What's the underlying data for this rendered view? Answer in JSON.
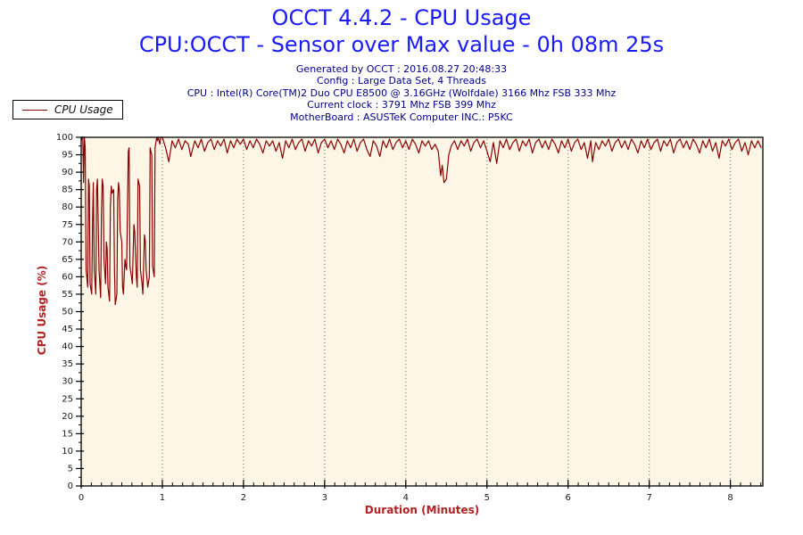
{
  "header": {
    "title": "OCCT 4.4.2 - CPU Usage",
    "subtitle": "CPU:OCCT - Sensor over Max value - 0h 08m 25s",
    "title_color": "#1a1aff",
    "info_color": "#00008B",
    "info_lines": [
      "Generated by OCCT : 2016.08.27 20:48:33",
      "Config : Large Data Set, 4 Threads",
      "CPU : Intel(R) Core(TM)2 Duo CPU E8500 @ 3.16GHz (Wolfdale) 3166 Mhz FSB 333 Mhz",
      "Current clock : 3791 Mhz FSB 399 Mhz",
      "MotherBoard : ASUSTeK Computer INC.: P5KC"
    ]
  },
  "legend": {
    "label": "CPU Usage",
    "line_color": "#8B0000",
    "position": "top-left"
  },
  "chart_data": {
    "type": "line",
    "title": "OCCT 4.4.2 - CPU Usage",
    "xlabel": "Duration (Minutes)",
    "ylabel": "CPU Usage (%)",
    "xlim": [
      0,
      8.4
    ],
    "ylim": [
      0,
      100
    ],
    "x_major_ticks": [
      0,
      1,
      2,
      3,
      4,
      5,
      6,
      7,
      8
    ],
    "x_minor_step": 0.125,
    "y_major_step": 5,
    "y_minor_step": 2.5,
    "grid": "vertical-dotted-at-each-minute",
    "legend_position": "top-left",
    "plot_bg": "#fdf6e6",
    "line_color": "#8b0000",
    "grid_color": "#666666",
    "spine_color": "#000000",
    "axis_label_color": "#b22222",
    "tick_label_color": "#1a1a1a",
    "series": [
      {
        "name": "CPU Usage",
        "points": [
          [
            0,
            99
          ],
          [
            0.01,
            100
          ],
          [
            0.02,
            100
          ],
          [
            0.03,
            87
          ],
          [
            0.04,
            100
          ],
          [
            0.05,
            97
          ],
          [
            0.06,
            62
          ],
          [
            0.08,
            57
          ],
          [
            0.09,
            88
          ],
          [
            0.1,
            86
          ],
          [
            0.11,
            58
          ],
          [
            0.13,
            55
          ],
          [
            0.14,
            75
          ],
          [
            0.15,
            87
          ],
          [
            0.16,
            62
          ],
          [
            0.18,
            55
          ],
          [
            0.19,
            85
          ],
          [
            0.2,
            88
          ],
          [
            0.21,
            75
          ],
          [
            0.22,
            62
          ],
          [
            0.24,
            54
          ],
          [
            0.25,
            78
          ],
          [
            0.26,
            88
          ],
          [
            0.27,
            86
          ],
          [
            0.28,
            65
          ],
          [
            0.3,
            58
          ],
          [
            0.31,
            70
          ],
          [
            0.32,
            68
          ],
          [
            0.33,
            57
          ],
          [
            0.35,
            53
          ],
          [
            0.36,
            80
          ],
          [
            0.37,
            86
          ],
          [
            0.38,
            84
          ],
          [
            0.4,
            85
          ],
          [
            0.41,
            62
          ],
          [
            0.42,
            52
          ],
          [
            0.44,
            55
          ],
          [
            0.45,
            82
          ],
          [
            0.46,
            87
          ],
          [
            0.47,
            85
          ],
          [
            0.48,
            73
          ],
          [
            0.5,
            70
          ],
          [
            0.51,
            57
          ],
          [
            0.52,
            55
          ],
          [
            0.54,
            65
          ],
          [
            0.55,
            63
          ],
          [
            0.56,
            62
          ],
          [
            0.58,
            96
          ],
          [
            0.59,
            97
          ],
          [
            0.6,
            63
          ],
          [
            0.62,
            60
          ],
          [
            0.63,
            58
          ],
          [
            0.65,
            75
          ],
          [
            0.66,
            73
          ],
          [
            0.68,
            60
          ],
          [
            0.69,
            57
          ],
          [
            0.7,
            88
          ],
          [
            0.72,
            86
          ],
          [
            0.73,
            62
          ],
          [
            0.75,
            58
          ],
          [
            0.76,
            55
          ],
          [
            0.78,
            72
          ],
          [
            0.79,
            70
          ],
          [
            0.8,
            62
          ],
          [
            0.82,
            57
          ],
          [
            0.84,
            60
          ],
          [
            0.85,
            97
          ],
          [
            0.87,
            95
          ],
          [
            0.88,
            63
          ],
          [
            0.9,
            60
          ],
          [
            0.91,
            97
          ],
          [
            0.93,
            100
          ],
          [
            0.94,
            99
          ],
          [
            0.95,
            100
          ],
          [
            0.97,
            98
          ],
          [
            0.98,
            100
          ],
          [
            1.0,
            100
          ],
          [
            1.04,
            97
          ],
          [
            1.08,
            93
          ],
          [
            1.12,
            99
          ],
          [
            1.16,
            97
          ],
          [
            1.2,
            99.5
          ],
          [
            1.24,
            96.5
          ],
          [
            1.28,
            99
          ],
          [
            1.32,
            98
          ],
          [
            1.35,
            94.5
          ],
          [
            1.4,
            99
          ],
          [
            1.44,
            97
          ],
          [
            1.48,
            99.5
          ],
          [
            1.52,
            96
          ],
          [
            1.56,
            98.5
          ],
          [
            1.6,
            99.5
          ],
          [
            1.64,
            96.5
          ],
          [
            1.68,
            99
          ],
          [
            1.72,
            97.5
          ],
          [
            1.76,
            99.5
          ],
          [
            1.8,
            95.5
          ],
          [
            1.84,
            99
          ],
          [
            1.88,
            97
          ],
          [
            1.92,
            99.5
          ],
          [
            1.96,
            98
          ],
          [
            2.0,
            99.5
          ],
          [
            2.04,
            96.5
          ],
          [
            2.08,
            99
          ],
          [
            2.12,
            97
          ],
          [
            2.16,
            99.5
          ],
          [
            2.2,
            98
          ],
          [
            2.24,
            95.5
          ],
          [
            2.28,
            99
          ],
          [
            2.32,
            97.5
          ],
          [
            2.36,
            99
          ],
          [
            2.4,
            96
          ],
          [
            2.44,
            98.5
          ],
          [
            2.48,
            94
          ],
          [
            2.52,
            99
          ],
          [
            2.56,
            97
          ],
          [
            2.6,
            99.5
          ],
          [
            2.64,
            96.5
          ],
          [
            2.68,
            98.5
          ],
          [
            2.72,
            99.5
          ],
          [
            2.76,
            96
          ],
          [
            2.8,
            99
          ],
          [
            2.84,
            97.5
          ],
          [
            2.88,
            99.5
          ],
          [
            2.92,
            95.5
          ],
          [
            2.96,
            98.5
          ],
          [
            3.0,
            99.5
          ],
          [
            3.04,
            97
          ],
          [
            3.08,
            99
          ],
          [
            3.12,
            96.5
          ],
          [
            3.16,
            99.5
          ],
          [
            3.2,
            98
          ],
          [
            3.24,
            95.5
          ],
          [
            3.28,
            99
          ],
          [
            3.32,
            97
          ],
          [
            3.36,
            99.5
          ],
          [
            3.4,
            96
          ],
          [
            3.44,
            98.5
          ],
          [
            3.48,
            99.5
          ],
          [
            3.52,
            96.5
          ],
          [
            3.56,
            94.5
          ],
          [
            3.6,
            99
          ],
          [
            3.64,
            97.5
          ],
          [
            3.68,
            94.5
          ],
          [
            3.72,
            99
          ],
          [
            3.76,
            97
          ],
          [
            3.8,
            99.5
          ],
          [
            3.84,
            96.5
          ],
          [
            3.88,
            98.5
          ],
          [
            3.92,
            99.5
          ],
          [
            3.96,
            97
          ],
          [
            4.0,
            99
          ],
          [
            4.04,
            96.5
          ],
          [
            4.08,
            99.5
          ],
          [
            4.12,
            98
          ],
          [
            4.16,
            95.5
          ],
          [
            4.2,
            99
          ],
          [
            4.24,
            97.5
          ],
          [
            4.28,
            99
          ],
          [
            4.32,
            96.5
          ],
          [
            4.36,
            98
          ],
          [
            4.4,
            96
          ],
          [
            4.43,
            89
          ],
          [
            4.45,
            92
          ],
          [
            4.47,
            87
          ],
          [
            4.5,
            88
          ],
          [
            4.53,
            95
          ],
          [
            4.56,
            97.5
          ],
          [
            4.6,
            99
          ],
          [
            4.64,
            96.5
          ],
          [
            4.68,
            99
          ],
          [
            4.72,
            97.5
          ],
          [
            4.76,
            99.5
          ],
          [
            4.8,
            96
          ],
          [
            4.84,
            98.5
          ],
          [
            4.88,
            99.5
          ],
          [
            4.92,
            97
          ],
          [
            4.96,
            99
          ],
          [
            5.0,
            96
          ],
          [
            5.04,
            93
          ],
          [
            5.08,
            98.5
          ],
          [
            5.12,
            92.5
          ],
          [
            5.16,
            99
          ],
          [
            5.2,
            97
          ],
          [
            5.24,
            99.5
          ],
          [
            5.28,
            96.5
          ],
          [
            5.32,
            98.5
          ],
          [
            5.36,
            99.5
          ],
          [
            5.4,
            96
          ],
          [
            5.44,
            99
          ],
          [
            5.48,
            97.5
          ],
          [
            5.52,
            99.5
          ],
          [
            5.56,
            95.5
          ],
          [
            5.6,
            98.5
          ],
          [
            5.64,
            99.5
          ],
          [
            5.68,
            97
          ],
          [
            5.72,
            99
          ],
          [
            5.76,
            96.5
          ],
          [
            5.8,
            99.5
          ],
          [
            5.84,
            98
          ],
          [
            5.88,
            95.5
          ],
          [
            5.92,
            99
          ],
          [
            5.96,
            97
          ],
          [
            6.0,
            99.5
          ],
          [
            6.04,
            96
          ],
          [
            6.08,
            98.5
          ],
          [
            6.12,
            99.5
          ],
          [
            6.16,
            96.5
          ],
          [
            6.2,
            98.5
          ],
          [
            6.24,
            94
          ],
          [
            6.28,
            99
          ],
          [
            6.3,
            93
          ],
          [
            6.34,
            98.5
          ],
          [
            6.38,
            96.5
          ],
          [
            6.42,
            99
          ],
          [
            6.46,
            97.5
          ],
          [
            6.5,
            99.5
          ],
          [
            6.54,
            96
          ],
          [
            6.58,
            98.5
          ],
          [
            6.62,
            99.5
          ],
          [
            6.66,
            97
          ],
          [
            6.7,
            99
          ],
          [
            6.74,
            96.5
          ],
          [
            6.78,
            99.5
          ],
          [
            6.82,
            98
          ],
          [
            6.86,
            95.5
          ],
          [
            6.9,
            99
          ],
          [
            6.94,
            97
          ],
          [
            6.98,
            99.5
          ],
          [
            7.02,
            96.5
          ],
          [
            7.06,
            98.5
          ],
          [
            7.1,
            99.5
          ],
          [
            7.14,
            96
          ],
          [
            7.18,
            99
          ],
          [
            7.22,
            97.5
          ],
          [
            7.26,
            99.5
          ],
          [
            7.3,
            95.5
          ],
          [
            7.34,
            98.5
          ],
          [
            7.38,
            99.5
          ],
          [
            7.42,
            97
          ],
          [
            7.46,
            99
          ],
          [
            7.5,
            96.5
          ],
          [
            7.54,
            99.5
          ],
          [
            7.58,
            98
          ],
          [
            7.62,
            95.5
          ],
          [
            7.66,
            99
          ],
          [
            7.7,
            97
          ],
          [
            7.74,
            99.5
          ],
          [
            7.78,
            96
          ],
          [
            7.82,
            98.5
          ],
          [
            7.86,
            94
          ],
          [
            7.9,
            99
          ],
          [
            7.94,
            97.5
          ],
          [
            7.98,
            99.5
          ],
          [
            8.02,
            96.5
          ],
          [
            8.06,
            98.5
          ],
          [
            8.1,
            99.5
          ],
          [
            8.14,
            96
          ],
          [
            8.18,
            98.5
          ],
          [
            8.22,
            95
          ],
          [
            8.26,
            99
          ],
          [
            8.3,
            97
          ],
          [
            8.34,
            99
          ],
          [
            8.38,
            97
          ]
        ]
      }
    ]
  }
}
